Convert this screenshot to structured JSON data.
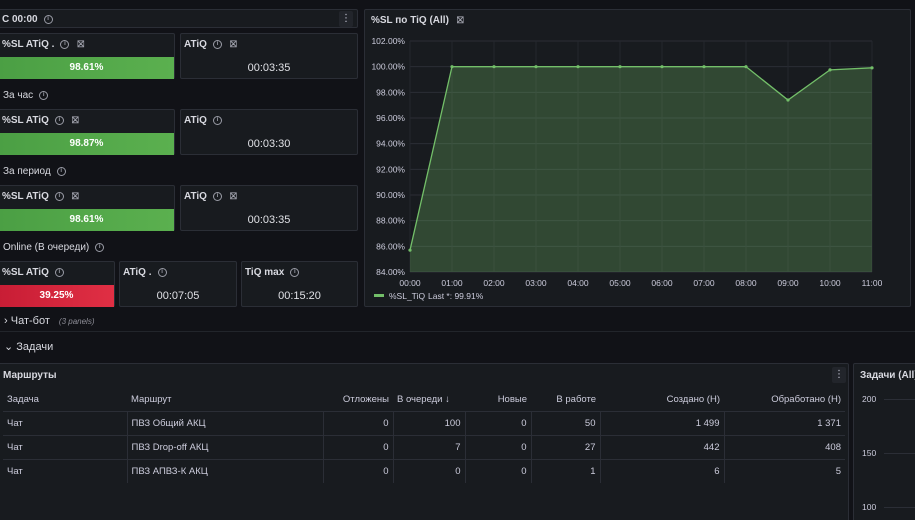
{
  "top_panel": {
    "title": "С 00:00"
  },
  "sections": [
    {
      "label": ""
    },
    {
      "label": "За час"
    },
    {
      "label": "За период"
    },
    {
      "label": "Online (В очереди)"
    }
  ],
  "stats": [
    {
      "sl_title": "%SL ATiQ .",
      "sl_value": "98.61%",
      "atiq_title": "ATiQ",
      "atiq_value": "00:03:35"
    },
    {
      "sl_title": "%SL ATiQ",
      "sl_value": "98.87%",
      "atiq_title": "ATiQ",
      "atiq_value": "00:03:30"
    },
    {
      "sl_title": "%SL ATiQ",
      "sl_value": "98.61%",
      "atiq_title": "ATiQ",
      "atiq_value": "00:03:35"
    }
  ],
  "online": {
    "sl_title": "%SL ATiQ",
    "sl_value": "39.25%",
    "atiq_title": "ATiQ .",
    "atiq_value": "00:07:05",
    "tiq_title": "TiQ max",
    "tiq_value": "00:15:20"
  },
  "colors": {
    "good": "#56a64b",
    "bad": "#e02f44",
    "series": "#73bf69"
  },
  "chart_title": "%SL по TiQ (All)",
  "chart_data": {
    "type": "area",
    "title": "%SL по TiQ (All)",
    "x": [
      "00:00",
      "01:00",
      "02:00",
      "03:00",
      "04:00",
      "05:00",
      "06:00",
      "07:00",
      "08:00",
      "09:00",
      "10:00",
      "11:00"
    ],
    "series": [
      {
        "name": "%SL_TiQ",
        "values": [
          85.7,
          100,
          100,
          100,
          100,
          100,
          100,
          100,
          100,
          97.4,
          99.75,
          99.91
        ]
      }
    ],
    "y_ticks": [
      "84.00%",
      "86.00%",
      "88.00%",
      "90.00%",
      "92.00%",
      "94.00%",
      "96.00%",
      "98.00%",
      "100.00%",
      "102.00%"
    ],
    "ylim": [
      84,
      102
    ],
    "legend_last": "Last *: 99.91%",
    "legend": "bottom-left",
    "grid": true
  },
  "rows": [
    {
      "label": "Чат-бот",
      "note": "(3 panels)"
    },
    {
      "label": "Задачи"
    }
  ],
  "table_panel": {
    "title": "Маршруты",
    "columns": [
      "Задача",
      "Маршрут",
      "Отложены",
      "В очереди",
      "Новые",
      "В работе",
      "Создано (Н)",
      "Обработано (Н)"
    ],
    "sort_icon": "↓",
    "rows": [
      [
        "Чат",
        "ПВЗ Общий АКЦ",
        "0",
        "100",
        "0",
        "50",
        "1 499",
        "1 371"
      ],
      [
        "Чат",
        "ПВЗ Drop-off АКЦ",
        "0",
        "7",
        "0",
        "27",
        "442",
        "408"
      ],
      [
        "Чат",
        "ПВЗ АПВЗ-К АКЦ",
        "0",
        "0",
        "0",
        "1",
        "6",
        "5"
      ]
    ]
  },
  "side_panel": {
    "title": "Задачи (All)",
    "y_ticks": [
      "200",
      "150",
      "100"
    ]
  }
}
